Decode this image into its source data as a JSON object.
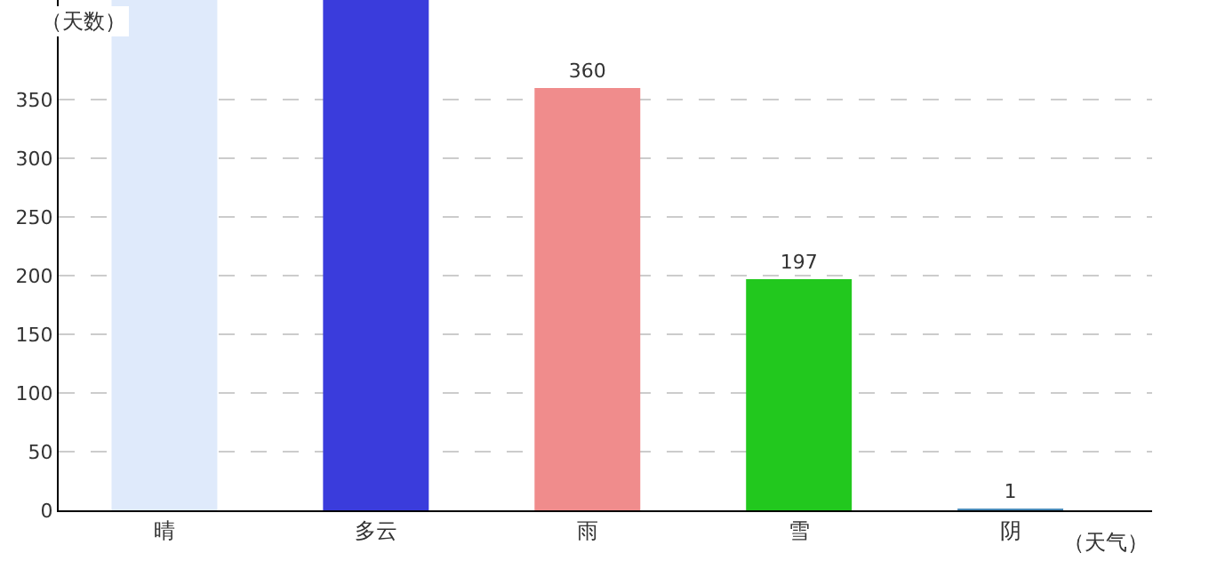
{
  "chart_data": {
    "type": "bar",
    "xlabel": "（天气）",
    "ylabel": "（天数）",
    "categories": [
      "晴",
      "多云",
      "雨",
      "雪",
      "阴"
    ],
    "values": [
      435,
      435,
      360,
      197,
      1
    ],
    "colors": [
      "#dfeafb",
      "#3a3cdc",
      "#f08c8c",
      "#22c81e",
      "#4a8ab8"
    ],
    "value_labels": [
      null,
      null,
      "360",
      "197",
      "1"
    ],
    "ylim": [
      0,
      435
    ],
    "yticks": [
      0,
      50,
      100,
      150,
      200,
      250,
      300,
      350
    ],
    "grid": "y"
  }
}
